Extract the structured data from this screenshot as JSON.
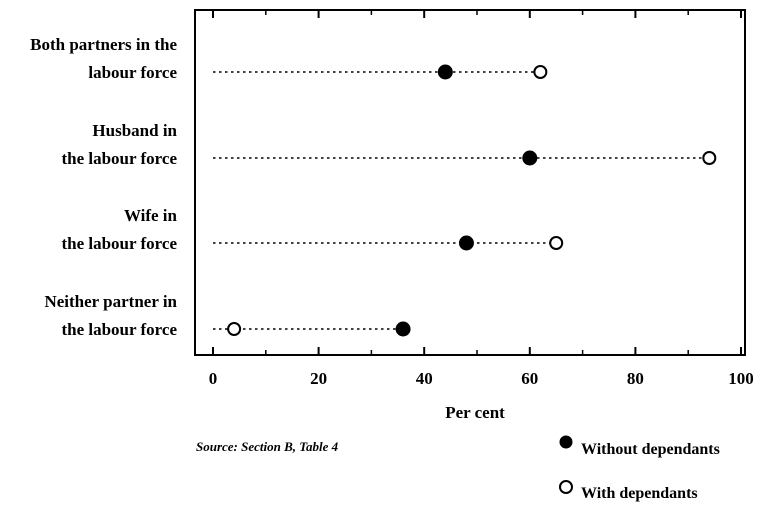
{
  "chart_data": {
    "type": "dot",
    "xlabel": "Per cent",
    "xlim": [
      0,
      100
    ],
    "xticks": [
      "0",
      "20",
      "40",
      "60",
      "80",
      "100"
    ],
    "categories": [
      [
        "Both partners in the",
        "labour force"
      ],
      [
        "Husband in",
        "the labour force"
      ],
      [
        "Wife in",
        "the labour force"
      ],
      [
        "Neither partner in",
        "the labour force"
      ]
    ],
    "series": [
      {
        "name": "Without dependants",
        "marker": "filled",
        "values": [
          44,
          60,
          48,
          36
        ]
      },
      {
        "name": "With dependants",
        "marker": "open",
        "values": [
          62,
          94,
          65,
          4
        ]
      }
    ],
    "source": "Source: Section B, Table 4"
  }
}
